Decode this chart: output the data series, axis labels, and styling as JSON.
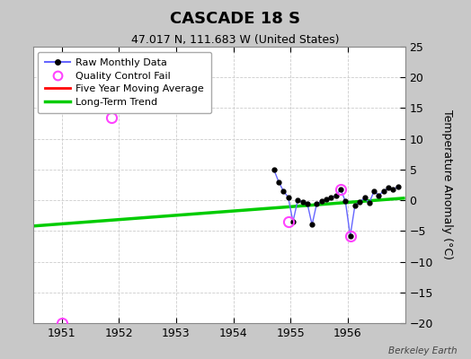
{
  "title": "CASCADE 18 S",
  "subtitle": "47.017 N, 111.683 W (United States)",
  "ylabel": "Temperature Anomaly (°C)",
  "credit": "Berkeley Earth",
  "ylim": [
    -20,
    25
  ],
  "xlim": [
    1950.5,
    1957.0
  ],
  "yticks": [
    -20,
    -15,
    -10,
    -5,
    0,
    5,
    10,
    15,
    20,
    25
  ],
  "xticks": [
    1951,
    1952,
    1953,
    1954,
    1955,
    1956
  ],
  "plot_bg_color": "#ffffff",
  "fig_bg_color": "#c8c8c8",
  "raw_data_x": [
    1954.708,
    1954.792,
    1954.875,
    1954.958,
    1955.042,
    1955.125,
    1955.208,
    1955.292,
    1955.375,
    1955.458,
    1955.542,
    1955.625,
    1955.708,
    1955.792,
    1955.875,
    1955.958,
    1956.042,
    1956.125,
    1956.208,
    1956.292,
    1956.375,
    1956.458,
    1956.542,
    1956.625,
    1956.708,
    1956.792,
    1956.875
  ],
  "raw_data_y": [
    5.0,
    3.0,
    1.5,
    0.5,
    -3.5,
    0.0,
    -0.3,
    -0.5,
    -4.0,
    -0.5,
    -0.2,
    0.2,
    0.5,
    0.7,
    1.8,
    -0.2,
    -5.8,
    -0.8,
    -0.3,
    0.4,
    -0.4,
    1.5,
    0.8,
    1.5,
    2.0,
    1.8,
    2.2
  ],
  "qc_fail_x": [
    1951.0,
    1951.875,
    1954.958,
    1955.875,
    1956.042
  ],
  "qc_fail_y": [
    -20.0,
    13.5,
    -3.5,
    1.8,
    -5.8
  ],
  "trend_x": [
    1950.5,
    1957.0
  ],
  "trend_y": [
    -4.2,
    0.35
  ],
  "raw_line_color": "#6666ff",
  "raw_marker_color": "#000000",
  "qc_circle_color": "#ff44ff",
  "moving_avg_color": "#ff0000",
  "trend_color": "#00cc00",
  "legend_items": [
    "Raw Monthly Data",
    "Quality Control Fail",
    "Five Year Moving Average",
    "Long-Term Trend"
  ]
}
